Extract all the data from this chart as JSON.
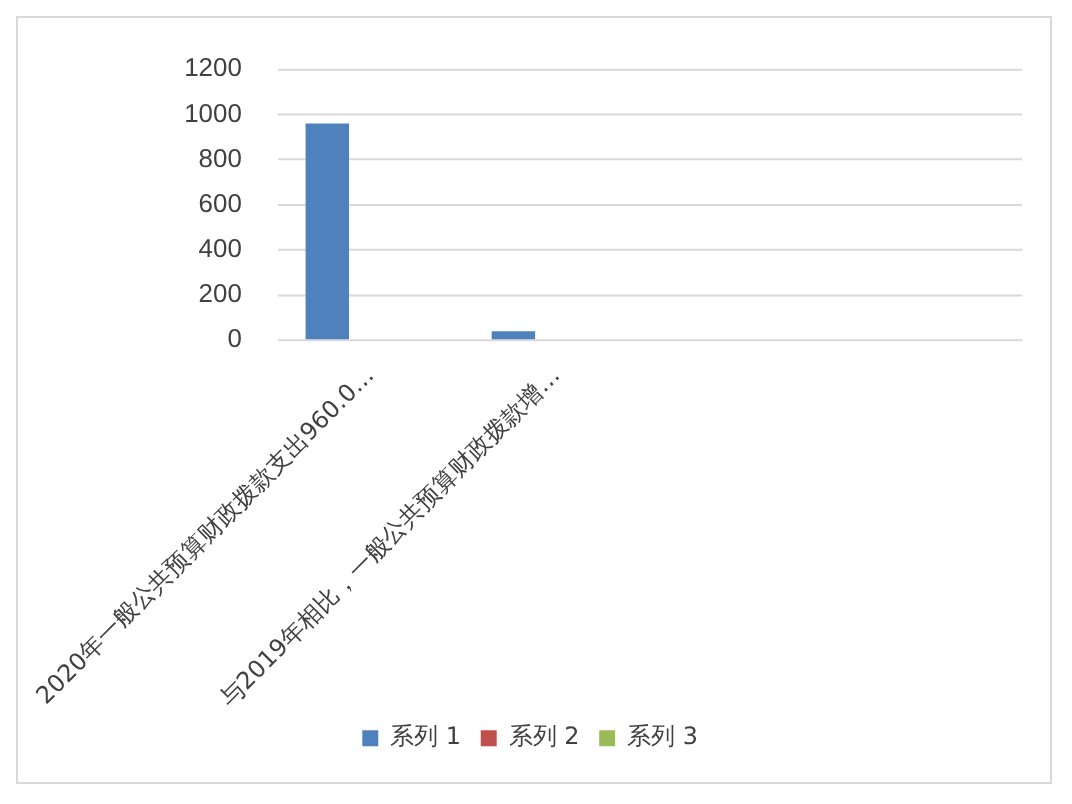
{
  "chart_data": {
    "type": "bar",
    "categories": [
      "2020年一般公共预算财政拨款支出960.0…",
      "与2019年相比，一般公共预算财政拨款增…",
      null,
      null
    ],
    "series": [
      {
        "name": "系列 1",
        "color": "#4f81bd",
        "values": [
          960,
          40,
          null,
          null
        ]
      },
      {
        "name": "系列 2",
        "color": "#c0504d",
        "values": [
          null,
          null,
          null,
          null
        ]
      },
      {
        "name": "系列 3",
        "color": "#9bbb59",
        "values": [
          null,
          null,
          null,
          null
        ]
      }
    ],
    "ylim": [
      0,
      1200
    ],
    "yticks": [
      0,
      200,
      400,
      600,
      800,
      1000,
      1200
    ],
    "grid": "y",
    "legend": "bottom"
  }
}
